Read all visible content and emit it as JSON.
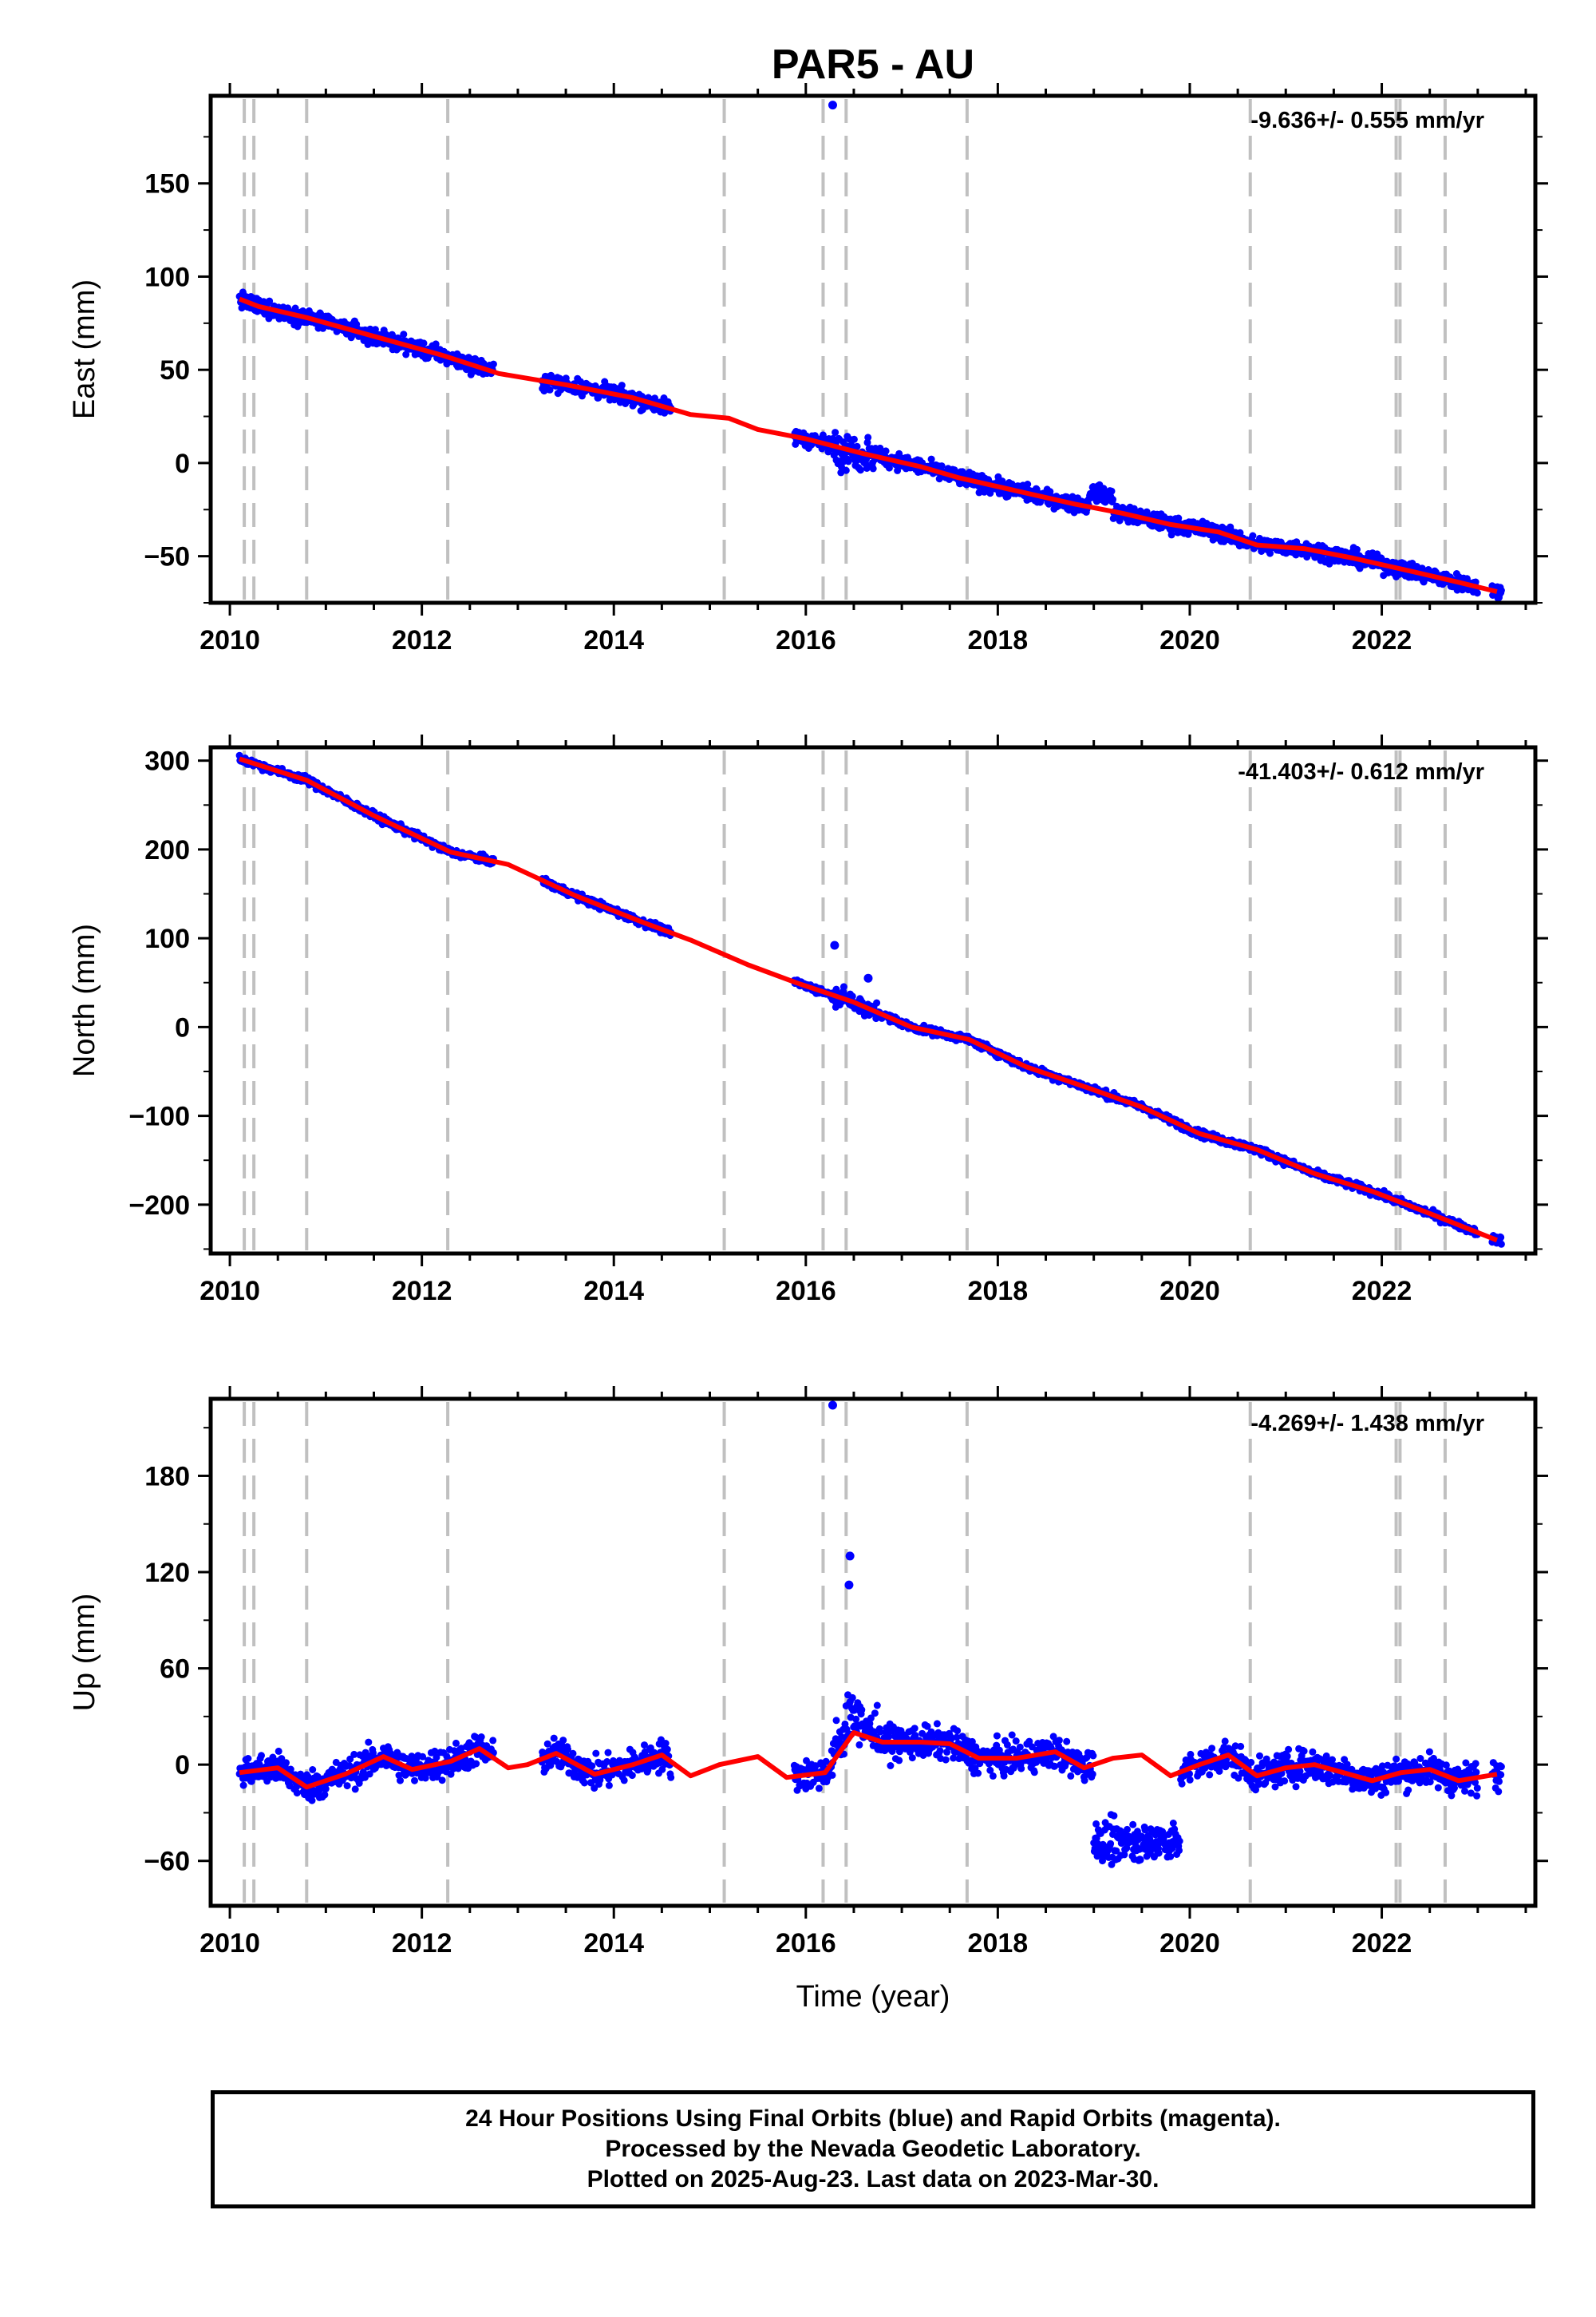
{
  "title": "PAR5 - AU",
  "chart_data": [
    {
      "type": "scatter",
      "panel": "east",
      "ylabel": "East (mm)",
      "xlabel": "",
      "rate_text": "-9.636+/- 0.555 mm/yr",
      "xlim": [
        2009.8,
        2023.6
      ],
      "ylim": [
        -75,
        197
      ],
      "yticks": [
        150,
        100,
        50,
        0,
        -50
      ],
      "ytick_labels": [
        "150",
        "100",
        "50",
        "0",
        "−50"
      ],
      "xticks": [
        2010,
        2012,
        2014,
        2016,
        2018,
        2020,
        2022
      ],
      "xtick_labels": [
        "2010",
        "2012",
        "2014",
        "2016",
        "2018",
        "2020",
        "2022"
      ],
      "grid": false,
      "outliers": [
        [
          2016.28,
          192
        ]
      ],
      "model_line": [
        [
          2010.1,
          88
        ],
        [
          2010.3,
          84
        ],
        [
          2010.8,
          78
        ],
        [
          2011.5,
          68
        ],
        [
          2012.2,
          58
        ],
        [
          2012.8,
          48
        ],
        [
          2013.5,
          42
        ],
        [
          2014.2,
          35
        ],
        [
          2014.8,
          26
        ],
        [
          2015.2,
          24
        ],
        [
          2015.5,
          18
        ],
        [
          2016.0,
          13
        ],
        [
          2016.6,
          5
        ],
        [
          2017.2,
          -2
        ],
        [
          2017.6,
          -8
        ],
        [
          2018.2,
          -15
        ],
        [
          2018.8,
          -22
        ],
        [
          2019.3,
          -27
        ],
        [
          2019.8,
          -33
        ],
        [
          2020.3,
          -37
        ],
        [
          2020.7,
          -44
        ],
        [
          2021.2,
          -46
        ],
        [
          2021.7,
          -51
        ],
        [
          2022.3,
          -58
        ],
        [
          2022.8,
          -64
        ],
        [
          2023.2,
          -69
        ]
      ],
      "series": [
        {
          "name": "Final Orbits",
          "color": "#0000ff"
        },
        {
          "color": "#ff0000"
        }
      ]
    },
    {
      "type": "scatter",
      "panel": "north",
      "ylabel": "North (mm)",
      "xlabel": "",
      "rate_text": "-41.403+/- 0.612 mm/yr",
      "xlim": [
        2009.8,
        2023.6
      ],
      "ylim": [
        -255,
        315
      ],
      "yticks": [
        300,
        200,
        100,
        0,
        -100,
        -200
      ],
      "ytick_labels": [
        "300",
        "200",
        "100",
        "0",
        "−100",
        "−200"
      ],
      "xticks": [
        2010,
        2012,
        2014,
        2016,
        2018,
        2020,
        2022
      ],
      "xtick_labels": [
        "2010",
        "2012",
        "2014",
        "2016",
        "2018",
        "2020",
        "2022"
      ],
      "grid": false,
      "outliers": [
        [
          2016.3,
          92
        ],
        [
          2016.65,
          55
        ]
      ],
      "model_line": [
        [
          2010.1,
          302
        ],
        [
          2010.8,
          278
        ],
        [
          2011.5,
          238
        ],
        [
          2012.3,
          197
        ],
        [
          2012.9,
          183
        ],
        [
          2013.6,
          148
        ],
        [
          2014.3,
          118
        ],
        [
          2014.8,
          98
        ],
        [
          2015.4,
          70
        ],
        [
          2015.9,
          50
        ],
        [
          2016.5,
          28
        ],
        [
          2017.1,
          0
        ],
        [
          2017.7,
          -14
        ],
        [
          2018.3,
          -45
        ],
        [
          2018.9,
          -67
        ],
        [
          2019.5,
          -90
        ],
        [
          2020.1,
          -120
        ],
        [
          2020.7,
          -138
        ],
        [
          2021.3,
          -165
        ],
        [
          2021.9,
          -185
        ],
        [
          2022.5,
          -210
        ],
        [
          2023.2,
          -240
        ]
      ],
      "series": [
        {
          "name": "Final Orbits",
          "color": "#0000ff"
        },
        {
          "color": "#ff0000"
        }
      ]
    },
    {
      "type": "scatter",
      "panel": "up",
      "ylabel": "Up (mm)",
      "xlabel": "Time (year)",
      "rate_text": "-4.269+/- 1.438 mm/yr",
      "xlim": [
        2009.8,
        2023.6
      ],
      "ylim": [
        -88,
        228
      ],
      "yticks": [
        180,
        120,
        60,
        0,
        -60
      ],
      "ytick_labels": [
        "180",
        "120",
        "60",
        "0",
        "−60"
      ],
      "xticks": [
        2010,
        2012,
        2014,
        2016,
        2018,
        2020,
        2022
      ],
      "xtick_labels": [
        "2010",
        "2012",
        "2014",
        "2016",
        "2018",
        "2020",
        "2022"
      ],
      "grid": false,
      "outliers": [
        [
          2016.28,
          224
        ],
        [
          2016.46,
          130
        ],
        [
          2016.45,
          112
        ]
      ],
      "model_line": [
        [
          2010.1,
          -5
        ],
        [
          2010.5,
          -2
        ],
        [
          2010.8,
          -14
        ],
        [
          2011.2,
          -6
        ],
        [
          2011.6,
          5
        ],
        [
          2011.9,
          -3
        ],
        [
          2012.3,
          2
        ],
        [
          2012.6,
          10
        ],
        [
          2012.9,
          -2
        ],
        [
          2013.1,
          0
        ],
        [
          2013.4,
          7
        ],
        [
          2013.8,
          -6
        ],
        [
          2014.2,
          0
        ],
        [
          2014.5,
          6
        ],
        [
          2014.8,
          -7
        ],
        [
          2015.1,
          0
        ],
        [
          2015.5,
          5
        ],
        [
          2015.8,
          -8
        ],
        [
          2016.2,
          -5
        ],
        [
          2016.5,
          20
        ],
        [
          2016.8,
          14
        ],
        [
          2017.2,
          14
        ],
        [
          2017.5,
          13
        ],
        [
          2017.8,
          4
        ],
        [
          2018.2,
          4
        ],
        [
          2018.6,
          8
        ],
        [
          2018.9,
          -2
        ],
        [
          2019.2,
          4
        ],
        [
          2019.5,
          6
        ],
        [
          2019.8,
          -7
        ],
        [
          2020.1,
          0
        ],
        [
          2020.4,
          6
        ],
        [
          2020.7,
          -7
        ],
        [
          2021.0,
          -2
        ],
        [
          2021.3,
          0
        ],
        [
          2021.6,
          -5
        ],
        [
          2021.9,
          -10
        ],
        [
          2022.2,
          -5
        ],
        [
          2022.5,
          -3
        ],
        [
          2022.8,
          -10
        ],
        [
          2023.2,
          -6
        ]
      ],
      "series": [
        {
          "name": "Final Orbits",
          "color": "#0000ff"
        },
        {
          "color": "#ff0000"
        }
      ]
    }
  ],
  "break_lines": [
    2010.15,
    2010.25,
    2010.8,
    2012.27,
    2015.15,
    2016.18,
    2016.42,
    2017.68,
    2020.63,
    2022.15,
    2022.19,
    2022.66
  ],
  "data_segments": [
    [
      2010.1,
      2012.75
    ],
    [
      2013.25,
      2014.6
    ],
    [
      2015.88,
      2023.0
    ],
    [
      2023.15,
      2023.25
    ]
  ],
  "colors": {
    "final_orbits": "#0000ff",
    "model": "#ff0000",
    "breaks": "#c0c0c0",
    "frame": "#000000"
  },
  "footer": {
    "line1": "24 Hour Positions Using Final Orbits (blue) and Rapid Orbits (magenta).",
    "line2": "Processed by the Nevada Geodetic Laboratory.",
    "line3": "Plotted on 2025-Aug-23. Last data on 2023-Mar-30."
  }
}
